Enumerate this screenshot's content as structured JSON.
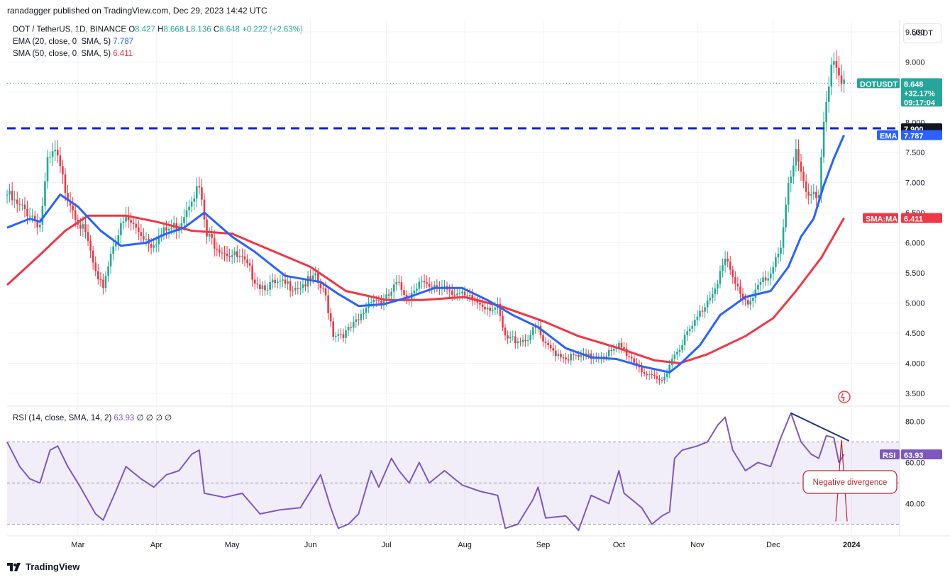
{
  "header": {
    "published_text": "ranadagger published on TradingView.com, Dec 29, 2023 14:42 UTC"
  },
  "symbol_legend": {
    "title": "DOT / TetherUS, 1D, BINANCE",
    "o_label": "O",
    "o": "8.427",
    "h_label": "H",
    "h": "8.668",
    "l_label": "L",
    "l": "8.136",
    "c_label": "C",
    "c": "8.648",
    "change": "+0.222 (+2.63%)"
  },
  "ema_legend": {
    "label": "EMA (20, close, 0, SMA, 5)",
    "value": "7.787"
  },
  "sma_legend": {
    "label": "SMA (50, close, 0, SMA, 5)",
    "value": "6.411"
  },
  "rsi_legend": {
    "label": "RSI (14, close, SMA, 14, 2)",
    "value": "63.93",
    "extra": "∅ ∅ ∅ ∅"
  },
  "unit": "USDT",
  "price_axis": {
    "ticks": [
      "9.500",
      "9.000",
      "8.500",
      "8.000",
      "7.500",
      "7.000",
      "6.500",
      "6.000",
      "5.500",
      "5.000",
      "4.500",
      "4.000",
      "3.500"
    ]
  },
  "rsi_axis": {
    "ticks": [
      "80.00",
      "60.00",
      "40.00"
    ]
  },
  "time_axis": {
    "labels": [
      "Mar",
      "Apr",
      "May",
      "Jun",
      "Jul",
      "Aug",
      "Sep",
      "Oct",
      "Nov",
      "Dec",
      "2024"
    ]
  },
  "tags": {
    "symbol": "DOTUSDT",
    "price": "8.648",
    "change_pct": "+32.17%",
    "countdown": "09:17:04",
    "level": "7.900",
    "ema_name": "EMA",
    "ema_value": "7.787",
    "sma_name": "SMA:MA",
    "sma_value": "6.411",
    "rsi_name": "RSI",
    "rsi_value": "63.93"
  },
  "annotation": {
    "text": "Negative divergence"
  },
  "brand": "TradingView",
  "colors": {
    "up": "#22ab94",
    "down": "#f23645",
    "ema": "#2962ff",
    "sma": "#f23645",
    "rsi": "#7e57c2",
    "level_line": "#0d22d9",
    "tag_teal": "#26a69a",
    "divergence": "#1f3a7a"
  },
  "chart_data": [
    {
      "type": "candlestick",
      "title": "DOT / TetherUS, 1D, BINANCE",
      "ylim": [
        3.3,
        9.7
      ],
      "x_range": [
        "2023-02-01",
        "2024-01-20"
      ],
      "horizontal_level": 7.9,
      "anchors": [
        [
          "2023-02-01",
          6.8
        ],
        [
          "2023-02-05",
          6.6
        ],
        [
          "2023-02-10",
          6.5
        ],
        [
          "2023-02-14",
          6.3
        ],
        [
          "2023-02-17",
          7.3
        ],
        [
          "2023-02-20",
          7.5
        ],
        [
          "2023-02-24",
          6.9
        ],
        [
          "2023-03-01",
          6.4
        ],
        [
          "2023-03-05",
          6.0
        ],
        [
          "2023-03-09",
          5.3
        ],
        [
          "2023-03-11",
          5.3
        ],
        [
          "2023-03-15",
          6.0
        ],
        [
          "2023-03-20",
          6.4
        ],
        [
          "2023-03-25",
          6.2
        ],
        [
          "2023-03-30",
          6.0
        ],
        [
          "2023-04-05",
          6.2
        ],
        [
          "2023-04-10",
          6.3
        ],
        [
          "2023-04-15",
          6.8
        ],
        [
          "2023-04-18",
          6.9
        ],
        [
          "2023-04-21",
          6.1
        ],
        [
          "2023-04-27",
          5.9
        ],
        [
          "2023-05-05",
          5.7
        ],
        [
          "2023-05-12",
          5.3
        ],
        [
          "2023-05-20",
          5.3
        ],
        [
          "2023-05-28",
          5.3
        ],
        [
          "2023-06-03",
          5.4
        ],
        [
          "2023-06-07",
          5.1
        ],
        [
          "2023-06-10",
          4.5
        ],
        [
          "2023-06-15",
          4.5
        ],
        [
          "2023-06-20",
          4.7
        ],
        [
          "2023-06-25",
          5.1
        ],
        [
          "2023-06-30",
          5.0
        ],
        [
          "2023-07-05",
          5.3
        ],
        [
          "2023-07-10",
          5.1
        ],
        [
          "2023-07-14",
          5.4
        ],
        [
          "2023-07-18",
          5.2
        ],
        [
          "2023-07-24",
          5.3
        ],
        [
          "2023-07-31",
          5.1
        ],
        [
          "2023-08-07",
          5.0
        ],
        [
          "2023-08-14",
          4.9
        ],
        [
          "2023-08-17",
          4.4
        ],
        [
          "2023-08-25",
          4.4
        ],
        [
          "2023-08-30",
          4.6
        ],
        [
          "2023-09-01",
          4.3
        ],
        [
          "2023-09-10",
          4.1
        ],
        [
          "2023-09-20",
          4.1
        ],
        [
          "2023-09-30",
          4.2
        ],
        [
          "2023-10-01",
          4.3
        ],
        [
          "2023-10-08",
          4.0
        ],
        [
          "2023-10-13",
          3.75
        ],
        [
          "2023-10-18",
          3.7
        ],
        [
          "2023-10-21",
          4.0
        ],
        [
          "2023-10-25",
          4.3
        ],
        [
          "2023-10-30",
          4.6
        ],
        [
          "2023-11-03",
          4.9
        ],
        [
          "2023-11-08",
          5.3
        ],
        [
          "2023-11-12",
          5.7
        ],
        [
          "2023-11-16",
          5.3
        ],
        [
          "2023-11-21",
          5.0
        ],
        [
          "2023-11-25",
          5.3
        ],
        [
          "2023-11-30",
          5.4
        ],
        [
          "2023-12-04",
          6.0
        ],
        [
          "2023-12-07",
          7.0
        ],
        [
          "2023-12-10",
          7.5
        ],
        [
          "2023-12-13",
          6.9
        ],
        [
          "2023-12-16",
          6.7
        ],
        [
          "2023-12-19",
          6.8
        ],
        [
          "2023-12-21",
          8.1
        ],
        [
          "2023-12-24",
          9.0
        ],
        [
          "2023-12-26",
          8.8
        ],
        [
          "2023-12-28",
          8.5
        ],
        [
          "2023-12-29",
          8.648
        ]
      ],
      "ema20": [
        [
          "2023-02-01",
          6.25
        ],
        [
          "2023-02-10",
          6.4
        ],
        [
          "2023-02-14",
          6.35
        ],
        [
          "2023-02-22",
          6.8
        ],
        [
          "2023-03-01",
          6.6
        ],
        [
          "2023-03-10",
          6.2
        ],
        [
          "2023-03-18",
          5.95
        ],
        [
          "2023-03-28",
          6.0
        ],
        [
          "2023-04-05",
          6.15
        ],
        [
          "2023-04-12",
          6.25
        ],
        [
          "2023-04-20",
          6.5
        ],
        [
          "2023-05-01",
          6.1
        ],
        [
          "2023-05-10",
          5.85
        ],
        [
          "2023-05-22",
          5.45
        ],
        [
          "2023-06-05",
          5.35
        ],
        [
          "2023-06-12",
          5.15
        ],
        [
          "2023-06-20",
          4.95
        ],
        [
          "2023-06-30",
          4.98
        ],
        [
          "2023-07-10",
          5.1
        ],
        [
          "2023-07-20",
          5.25
        ],
        [
          "2023-07-31",
          5.25
        ],
        [
          "2023-08-10",
          5.05
        ],
        [
          "2023-08-20",
          4.8
        ],
        [
          "2023-08-30",
          4.6
        ],
        [
          "2023-09-10",
          4.25
        ],
        [
          "2023-09-20",
          4.1
        ],
        [
          "2023-09-30",
          4.07
        ],
        [
          "2023-10-10",
          3.95
        ],
        [
          "2023-10-21",
          3.85
        ],
        [
          "2023-10-25",
          3.98
        ],
        [
          "2023-11-02",
          4.3
        ],
        [
          "2023-11-10",
          4.8
        ],
        [
          "2023-11-20",
          5.1
        ],
        [
          "2023-11-30",
          5.2
        ],
        [
          "2023-12-07",
          5.6
        ],
        [
          "2023-12-12",
          6.1
        ],
        [
          "2023-12-17",
          6.4
        ],
        [
          "2023-12-21",
          6.95
        ],
        [
          "2023-12-25",
          7.4
        ],
        [
          "2023-12-29",
          7.787
        ]
      ],
      "sma50": [
        [
          "2023-02-01",
          5.3
        ],
        [
          "2023-02-14",
          5.8
        ],
        [
          "2023-02-24",
          6.2
        ],
        [
          "2023-03-05",
          6.45
        ],
        [
          "2023-03-20",
          6.45
        ],
        [
          "2023-04-01",
          6.35
        ],
        [
          "2023-04-15",
          6.2
        ],
        [
          "2023-05-01",
          6.15
        ],
        [
          "2023-05-15",
          5.9
        ],
        [
          "2023-06-01",
          5.6
        ],
        [
          "2023-06-15",
          5.2
        ],
        [
          "2023-07-01",
          5.05
        ],
        [
          "2023-07-15",
          5.05
        ],
        [
          "2023-08-01",
          5.1
        ],
        [
          "2023-08-15",
          4.95
        ],
        [
          "2023-09-01",
          4.7
        ],
        [
          "2023-09-15",
          4.45
        ],
        [
          "2023-10-01",
          4.25
        ],
        [
          "2023-10-15",
          4.05
        ],
        [
          "2023-10-25",
          4.0
        ],
        [
          "2023-11-05",
          4.15
        ],
        [
          "2023-11-20",
          4.45
        ],
        [
          "2023-12-01",
          4.75
        ],
        [
          "2023-12-10",
          5.2
        ],
        [
          "2023-12-20",
          5.75
        ],
        [
          "2023-12-29",
          6.411
        ]
      ]
    },
    {
      "type": "line",
      "title": "RSI (14, close, SMA, 14, 2)",
      "ylim": [
        25,
        87
      ],
      "bands": [
        30,
        50,
        70
      ],
      "series": [
        {
          "name": "RSI",
          "points": [
            [
              "2023-02-01",
              70
            ],
            [
              "2023-02-06",
              58
            ],
            [
              "2023-02-10",
              52
            ],
            [
              "2023-02-14",
              50
            ],
            [
              "2023-02-18",
              66
            ],
            [
              "2023-02-21",
              68
            ],
            [
              "2023-02-25",
              58
            ],
            [
              "2023-03-02",
              48
            ],
            [
              "2023-03-08",
              35
            ],
            [
              "2023-03-11",
              32
            ],
            [
              "2023-03-16",
              46
            ],
            [
              "2023-03-20",
              58
            ],
            [
              "2023-03-26",
              52
            ],
            [
              "2023-03-31",
              48
            ],
            [
              "2023-04-05",
              54
            ],
            [
              "2023-04-10",
              56
            ],
            [
              "2023-04-15",
              64
            ],
            [
              "2023-04-18",
              66
            ],
            [
              "2023-04-20",
              45
            ],
            [
              "2023-04-28",
              43
            ],
            [
              "2023-05-05",
              45
            ],
            [
              "2023-05-12",
              35
            ],
            [
              "2023-05-20",
              37
            ],
            [
              "2023-05-28",
              38
            ],
            [
              "2023-06-02",
              48
            ],
            [
              "2023-06-05",
              54
            ],
            [
              "2023-06-09",
              38
            ],
            [
              "2023-06-12",
              28
            ],
            [
              "2023-06-16",
              30
            ],
            [
              "2023-06-20",
              35
            ],
            [
              "2023-06-25",
              56
            ],
            [
              "2023-06-28",
              48
            ],
            [
              "2023-07-03",
              62
            ],
            [
              "2023-07-06",
              56
            ],
            [
              "2023-07-10",
              50
            ],
            [
              "2023-07-14",
              60
            ],
            [
              "2023-07-18",
              50
            ],
            [
              "2023-07-24",
              56
            ],
            [
              "2023-07-31",
              49
            ],
            [
              "2023-08-07",
              46
            ],
            [
              "2023-08-14",
              44
            ],
            [
              "2023-08-17",
              28
            ],
            [
              "2023-08-22",
              30
            ],
            [
              "2023-08-28",
              42
            ],
            [
              "2023-08-30",
              48
            ],
            [
              "2023-09-02",
              33
            ],
            [
              "2023-09-10",
              34
            ],
            [
              "2023-09-15",
              27
            ],
            [
              "2023-09-20",
              44
            ],
            [
              "2023-09-27",
              40
            ],
            [
              "2023-10-01",
              56
            ],
            [
              "2023-10-03",
              45
            ],
            [
              "2023-10-10",
              38
            ],
            [
              "2023-10-14",
              30
            ],
            [
              "2023-10-18",
              34
            ],
            [
              "2023-10-21",
              36
            ],
            [
              "2023-10-23",
              62
            ],
            [
              "2023-10-26",
              66
            ],
            [
              "2023-11-01",
              68
            ],
            [
              "2023-11-05",
              70
            ],
            [
              "2023-11-09",
              78
            ],
            [
              "2023-11-12",
              82
            ],
            [
              "2023-11-15",
              66
            ],
            [
              "2023-11-20",
              56
            ],
            [
              "2023-11-25",
              60
            ],
            [
              "2023-11-30",
              58
            ],
            [
              "2023-12-04",
              72
            ],
            [
              "2023-12-08",
              84
            ],
            [
              "2023-12-12",
              70
            ],
            [
              "2023-12-16",
              64
            ],
            [
              "2023-12-19",
              62
            ],
            [
              "2023-12-22",
              73
            ],
            [
              "2023-12-25",
              72
            ],
            [
              "2023-12-27",
              60
            ],
            [
              "2023-12-29",
              63.93
            ]
          ]
        }
      ],
      "divergence_line": [
        [
          "2023-12-08",
          84
        ],
        [
          "2023-12-31",
          70.5
        ]
      ]
    }
  ]
}
